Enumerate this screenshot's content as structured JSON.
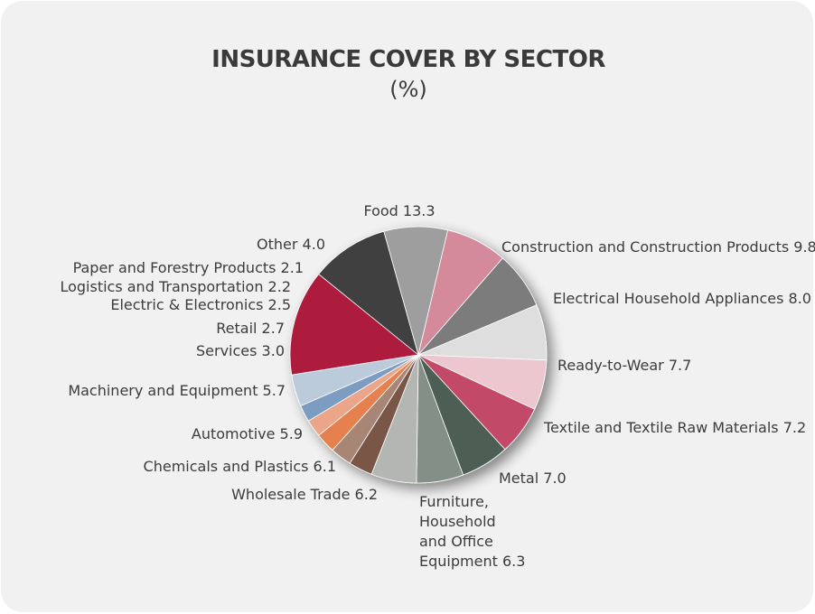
{
  "chart_data": {
    "type": "pie",
    "title": "INSURANCE COVER BY SECTOR",
    "subtitle": "(%)",
    "slices": [
      {
        "label": "Food 13.3",
        "value": 13.3,
        "color": "#ae1d3e"
      },
      {
        "label": "Construction and Construction Products 9.8",
        "value": 9.8,
        "color": "#3f3f41"
      },
      {
        "label": "Electrical Household Appliances 8.0",
        "value": 8.0,
        "color": "#9e9e9e"
      },
      {
        "label": "Ready-to-Wear 7.7",
        "value": 7.7,
        "color": "#d48a9a"
      },
      {
        "label": "Textile and Textile Raw Materials 7.2",
        "value": 7.2,
        "color": "#7c7c7c"
      },
      {
        "label": "Metal 7.0",
        "value": 7.0,
        "color": "#dedede"
      },
      {
        "label": "Furniture, Household and Office Equipment 6.3",
        "value": 6.3,
        "color": "#ecc7cf"
      },
      {
        "label": "Wholesale Trade 6.2",
        "value": 6.2,
        "color": "#c24a68"
      },
      {
        "label": "Chemicals and Plastics 6.1",
        "value": 6.1,
        "color": "#4e5f55"
      },
      {
        "label": "Automotive 5.9",
        "value": 5.9,
        "color": "#848f88"
      },
      {
        "label": "Machinery and Equipment 5.7",
        "value": 5.7,
        "color": "#b3b6b2"
      },
      {
        "label": "Services 3.0",
        "value": 3.0,
        "color": "#7a5646"
      },
      {
        "label": "Retail 2.7",
        "value": 2.7,
        "color": "#a88675"
      },
      {
        "label": "Electric & Electronics 2.5",
        "value": 2.5,
        "color": "#e58050"
      },
      {
        "label": "Logistics and Transportation 2.2",
        "value": 2.2,
        "color": "#eba68a"
      },
      {
        "label": "Paper and Forestry Products 2.1",
        "value": 2.1,
        "color": "#7c9cc1"
      },
      {
        "label": "Other 4.0",
        "value": 4.0,
        "color": "#bccbdc"
      }
    ]
  }
}
